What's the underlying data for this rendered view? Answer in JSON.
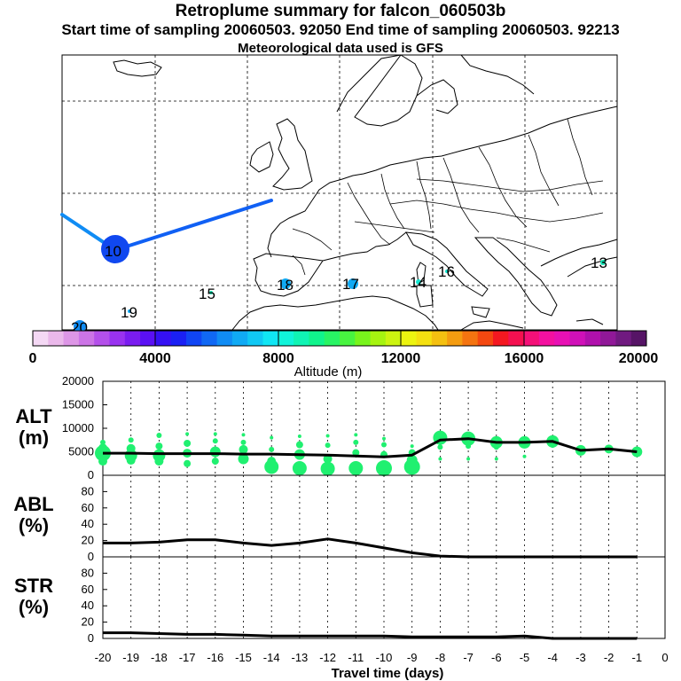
{
  "header": {
    "title": "Retroplume summary for falcon_060503b",
    "sampling": "Start time of sampling 20060503. 92050     End time of sampling 20060503. 92213",
    "met": "Meteorological data used is GFS"
  },
  "map": {
    "day_labels": [
      "10",
      "13",
      "14",
      "15",
      "16",
      "17",
      "18",
      "19",
      "20"
    ]
  },
  "colorbar": {
    "ticks": [
      "0",
      "4000",
      "8000",
      "12000",
      "16000",
      "20000"
    ],
    "label": "Altitude (m)",
    "colors": [
      "#f4d8f4",
      "#eab8ea",
      "#dd96e6",
      "#cc74e6",
      "#b450ea",
      "#9932f0",
      "#7a1cf0",
      "#5a10f4",
      "#3510f4",
      "#1a20f4",
      "#1045f4",
      "#1068f4",
      "#108cf4",
      "#10aaf4",
      "#10c8f4",
      "#10e6f4",
      "#10f4da",
      "#10f4b4",
      "#10f48c",
      "#28f464",
      "#48f440",
      "#78f41c",
      "#a6f410",
      "#ccf410",
      "#ecf410",
      "#f4e010",
      "#f4c010",
      "#f49c10",
      "#f47410",
      "#f44810",
      "#f41820",
      "#f41050",
      "#f41078",
      "#f410a0",
      "#e810b4",
      "#d010b8",
      "#b010ac",
      "#901898",
      "#701a80",
      "#561466"
    ]
  },
  "chart_data": [
    {
      "type": "line",
      "panel": "ALT",
      "ylabel": "ALT\n(m)",
      "ylabel_lines": [
        "ALT",
        "(m)"
      ],
      "ylim": [
        0,
        20000
      ],
      "yticks": [
        "0",
        "5000",
        "10000",
        "15000",
        "20000"
      ],
      "x": [
        -20,
        -19,
        -18,
        -17,
        -16,
        -15,
        -14,
        -13,
        -12,
        -11,
        -10,
        -9,
        -8,
        -7,
        -6,
        -5,
        -4,
        -3,
        -2,
        -1
      ],
      "values": [
        4700,
        4700,
        4600,
        4600,
        4600,
        4500,
        4500,
        4400,
        4300,
        4100,
        3900,
        4300,
        7500,
        7800,
        7000,
        7000,
        7200,
        5300,
        5600,
        5000
      ],
      "clusters": [
        {
          "x": -20,
          "y": [
            7000,
            5800,
            4700,
            3000
          ],
          "r": [
            3,
            5,
            9,
            5
          ]
        },
        {
          "x": -19,
          "y": [
            7500,
            5700,
            4200,
            3200
          ],
          "r": [
            3,
            5,
            7,
            5
          ]
        },
        {
          "x": -18,
          "y": [
            8500,
            6200,
            4200,
            3000
          ],
          "r": [
            3,
            4,
            7,
            5
          ]
        },
        {
          "x": -17,
          "y": [
            8800,
            6800,
            4700,
            2500
          ],
          "r": [
            2,
            4,
            5,
            4
          ]
        },
        {
          "x": -16,
          "y": [
            8800,
            7300,
            5000,
            3000
          ],
          "r": [
            2,
            3,
            6,
            4
          ]
        },
        {
          "x": -15,
          "y": [
            8600,
            7000,
            5500,
            3500
          ],
          "r": [
            2,
            3,
            5,
            6
          ]
        },
        {
          "x": -14,
          "y": [
            8000,
            5500,
            3000,
            1800
          ],
          "r": [
            2,
            3,
            5,
            8
          ]
        },
        {
          "x": -13,
          "y": [
            8300,
            6500,
            4400,
            1500
          ],
          "r": [
            2,
            4,
            6,
            8
          ]
        },
        {
          "x": -12,
          "y": [
            8400,
            6400,
            3500,
            1400
          ],
          "r": [
            2,
            3,
            5,
            8
          ]
        },
        {
          "x": -11,
          "y": [
            8600,
            7000,
            4800,
            1500
          ],
          "r": [
            2,
            3,
            4,
            8
          ]
        },
        {
          "x": -10,
          "y": [
            7800,
            6500,
            4400,
            1500
          ],
          "r": [
            2,
            3,
            4,
            9
          ]
        },
        {
          "x": -9,
          "y": [
            6200,
            4800,
            3200,
            1800
          ],
          "r": [
            2,
            4,
            6,
            9
          ]
        },
        {
          "x": -8,
          "y": [
            8000,
            6000,
            3500
          ],
          "r": [
            8,
            3,
            2
          ]
        },
        {
          "x": -7,
          "y": [
            7800,
            6200,
            3500
          ],
          "r": [
            8,
            3,
            2
          ]
        },
        {
          "x": -6,
          "y": [
            7000,
            6000,
            3500
          ],
          "r": [
            7,
            3,
            2
          ]
        },
        {
          "x": -5,
          "y": [
            7000,
            4000
          ],
          "r": [
            7,
            2
          ]
        },
        {
          "x": -4,
          "y": [
            7200,
            6200
          ],
          "r": [
            7,
            2
          ]
        },
        {
          "x": -3,
          "y": [
            5300
          ],
          "r": [
            6
          ]
        },
        {
          "x": -2,
          "y": [
            5600
          ],
          "r": [
            5
          ]
        },
        {
          "x": -1,
          "y": [
            5000
          ],
          "r": [
            6
          ]
        }
      ],
      "marker_color": "#20f070"
    },
    {
      "type": "line",
      "panel": "ABL",
      "ylabel": "ABL\n(%)",
      "ylabel_lines": [
        "ABL",
        "(%)"
      ],
      "ylim": [
        0,
        100
      ],
      "yticks": [
        "0",
        "20",
        "40",
        "60",
        "80"
      ],
      "x": [
        -20,
        -19,
        -18,
        -17,
        -16,
        -15,
        -14,
        -13,
        -12,
        -11,
        -10,
        -9,
        -8,
        -7,
        -6,
        -5,
        -4,
        -3,
        -2,
        -1
      ],
      "values": [
        17,
        17,
        18,
        21,
        21,
        17,
        14,
        17,
        22,
        17,
        11,
        5,
        1,
        0,
        0,
        0,
        0,
        0,
        0,
        0
      ]
    },
    {
      "type": "line",
      "panel": "STR",
      "ylabel": "STR\n(%)",
      "ylabel_lines": [
        "STR",
        "(%)"
      ],
      "ylim": [
        0,
        100
      ],
      "yticks": [
        "0",
        "20",
        "40",
        "60",
        "80"
      ],
      "x": [
        -20,
        -19,
        -18,
        -17,
        -16,
        -15,
        -14,
        -13,
        -12,
        -11,
        -10,
        -9,
        -8,
        -7,
        -6,
        -5,
        -4,
        -3,
        -2,
        -1
      ],
      "values": [
        7,
        7,
        6,
        5,
        5,
        4,
        3,
        3,
        3,
        3,
        3,
        2,
        2,
        2,
        2,
        3,
        0,
        0,
        0,
        0
      ]
    }
  ],
  "xaxis": {
    "ticks": [
      "-20",
      "-19",
      "-18",
      "-17",
      "-16",
      "-15",
      "-14",
      "-13",
      "-12",
      "-11",
      "-10",
      "-9",
      "-8",
      "-7",
      "-6",
      "-5",
      "-4",
      "-3",
      "-2",
      "-1",
      "0"
    ],
    "xlim": [
      -20,
      0
    ],
    "label": "Travel time (days)"
  }
}
